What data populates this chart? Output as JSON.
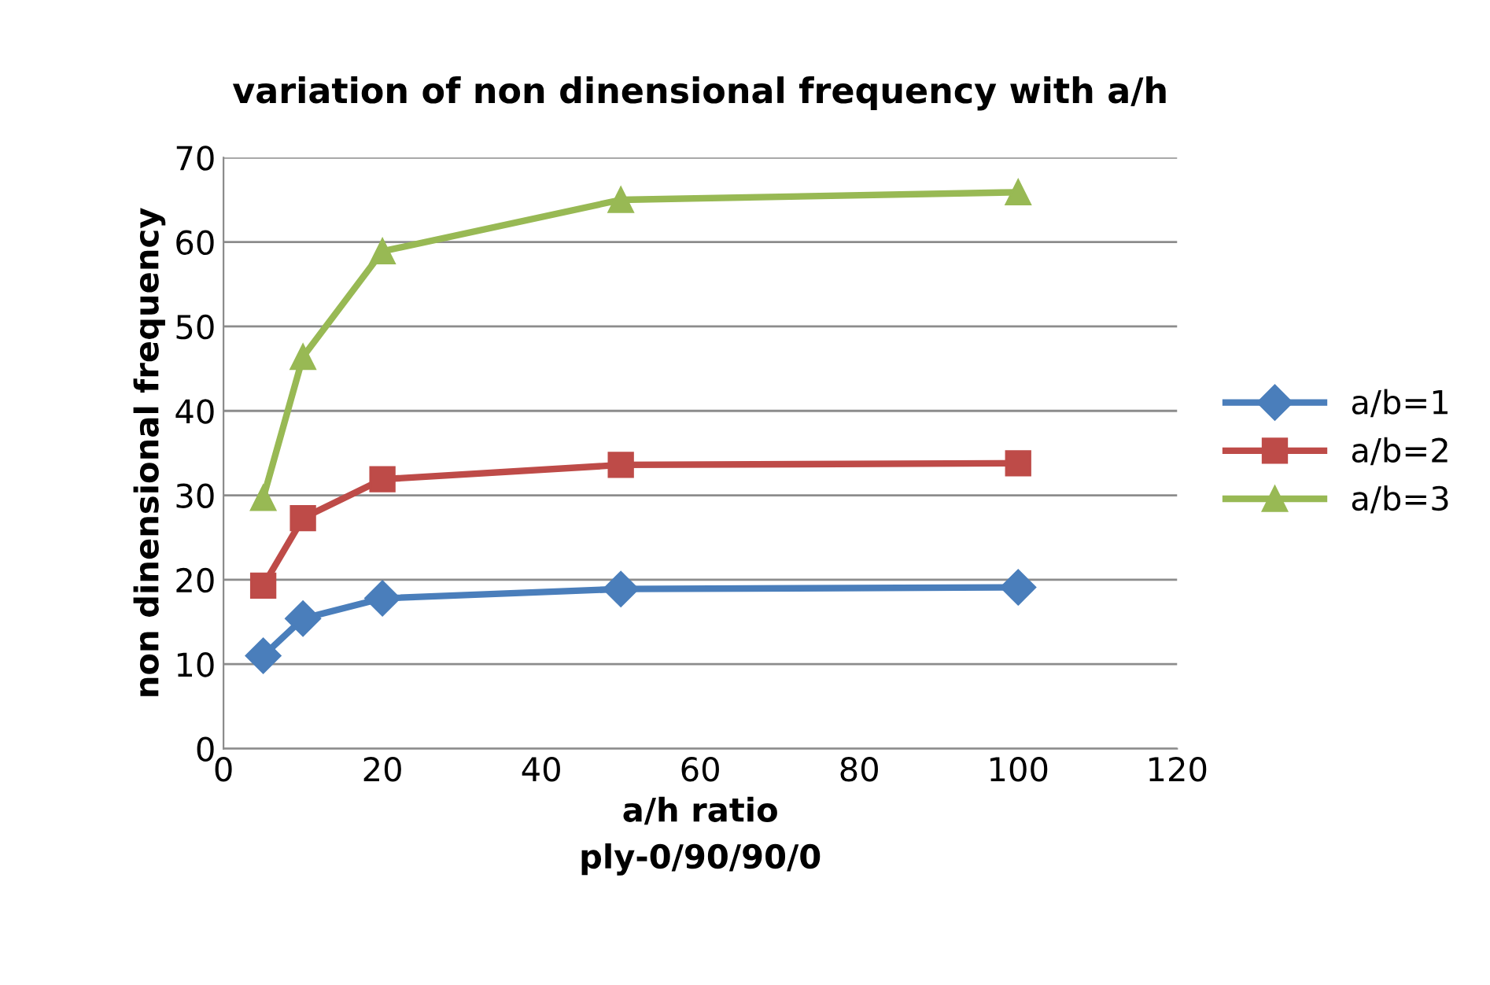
{
  "chart_data": {
    "type": "line",
    "title": "variation of non dinensional frequency with a/h",
    "xlabel": "a/h ratio\nply-0/90/90/0",
    "ylabel": "non dinensional frequency",
    "xlim": [
      0,
      120
    ],
    "xticks": [
      0,
      20,
      40,
      60,
      80,
      100,
      120
    ],
    "ylim": [
      0,
      70
    ],
    "yticks": [
      0,
      10,
      20,
      30,
      40,
      50,
      60,
      70
    ],
    "grid": "y",
    "legend": "right",
    "line_style": "solid",
    "series": [
      {
        "name": "a/b=1",
        "color": "#4a7ebb",
        "marker": "diamond",
        "x": [
          5,
          10,
          20,
          50,
          100
        ],
        "values": [
          11,
          15.4,
          17.8,
          18.9,
          19.1
        ]
      },
      {
        "name": "a/b=2",
        "color": "#be4b48",
        "marker": "square",
        "x": [
          5,
          10,
          20,
          50,
          100
        ],
        "values": [
          19.3,
          27.3,
          31.9,
          33.6,
          33.8
        ]
      },
      {
        "name": "a/b=3",
        "color": "#98b954",
        "marker": "triangle",
        "x": [
          5,
          10,
          20,
          50,
          100
        ],
        "values": [
          29.7,
          46.4,
          58.9,
          65,
          65.9
        ]
      }
    ]
  }
}
